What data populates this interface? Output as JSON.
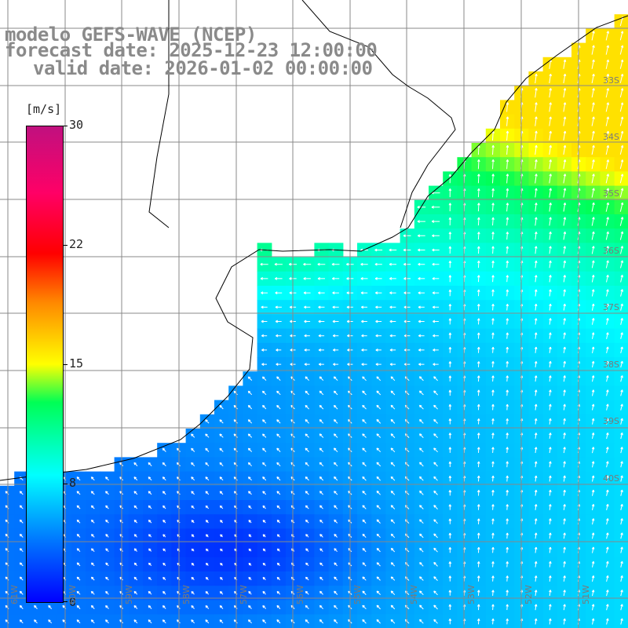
{
  "title": {
    "line1": "modelo GEFS-WAVE (NCEP)",
    "line2": "forecast date: 2025-12-23 12:00:00",
    "line3": "valid date: 2026-01-02 00:00:00"
  },
  "colorbar": {
    "unit": "[m/s]",
    "min": 0,
    "max": 30,
    "ticks": [
      "30",
      "22",
      "15",
      "8",
      "0"
    ],
    "colors": [
      "#0000ff",
      "#00ffff",
      "#00ff00",
      "#ffff00",
      "#ff0000",
      "#c0107f"
    ]
  },
  "axes": {
    "lat_labels": [
      "33S",
      "34S",
      "35S",
      "36S",
      "37S",
      "38S",
      "39S",
      "40S"
    ],
    "lon_labels": [
      "61W",
      "60W",
      "59W",
      "58W",
      "57W",
      "56W",
      "55W",
      "54W",
      "53W",
      "52W",
      "51W"
    ]
  },
  "map": {
    "region": "Río de la Plata / South-West Atlantic",
    "land_color": "#ffffff",
    "coast_color": "#000000",
    "grid_color": "#888888"
  }
}
